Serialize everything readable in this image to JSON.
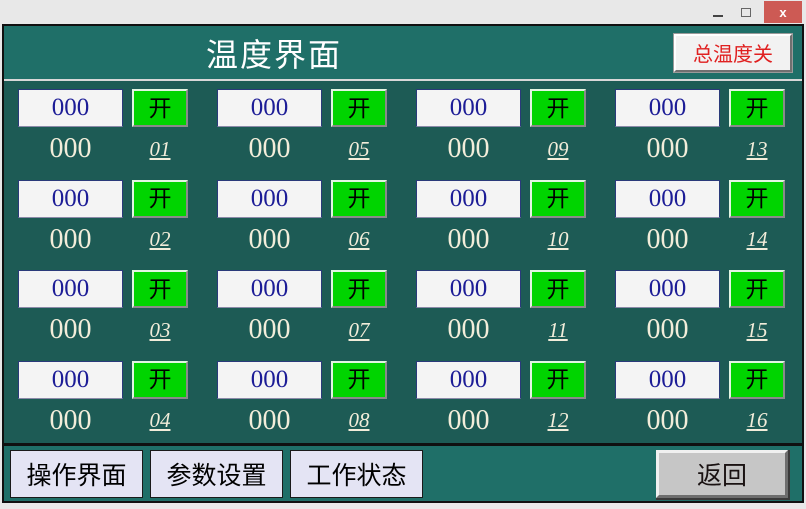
{
  "window": {
    "controls": {
      "minimize": "minimize",
      "maximize": "maximize",
      "close_glyph": "x"
    }
  },
  "header": {
    "title": "温度界面",
    "master_button_label": "总温度关"
  },
  "channels": [
    {
      "id": "01",
      "set_value": "000",
      "switch_label": "开",
      "actual_value": "000"
    },
    {
      "id": "05",
      "set_value": "000",
      "switch_label": "开",
      "actual_value": "000"
    },
    {
      "id": "09",
      "set_value": "000",
      "switch_label": "开",
      "actual_value": "000"
    },
    {
      "id": "13",
      "set_value": "000",
      "switch_label": "开",
      "actual_value": "000"
    },
    {
      "id": "02",
      "set_value": "000",
      "switch_label": "开",
      "actual_value": "000"
    },
    {
      "id": "06",
      "set_value": "000",
      "switch_label": "开",
      "actual_value": "000"
    },
    {
      "id": "10",
      "set_value": "000",
      "switch_label": "开",
      "actual_value": "000"
    },
    {
      "id": "14",
      "set_value": "000",
      "switch_label": "开",
      "actual_value": "000"
    },
    {
      "id": "03",
      "set_value": "000",
      "switch_label": "开",
      "actual_value": "000"
    },
    {
      "id": "07",
      "set_value": "000",
      "switch_label": "开",
      "actual_value": "000"
    },
    {
      "id": "11",
      "set_value": "000",
      "switch_label": "开",
      "actual_value": "000"
    },
    {
      "id": "15",
      "set_value": "000",
      "switch_label": "开",
      "actual_value": "000"
    },
    {
      "id": "04",
      "set_value": "000",
      "switch_label": "开",
      "actual_value": "000"
    },
    {
      "id": "08",
      "set_value": "000",
      "switch_label": "开",
      "actual_value": "000"
    },
    {
      "id": "12",
      "set_value": "000",
      "switch_label": "开",
      "actual_value": "000"
    },
    {
      "id": "16",
      "set_value": "000",
      "switch_label": "开",
      "actual_value": "000"
    }
  ],
  "footer": {
    "nav": [
      "操作界面",
      "参数设置",
      "工作状态"
    ],
    "return_label": "返回"
  },
  "colors": {
    "header_teal": "#1f6f68",
    "main_teal": "#1d5b55",
    "switch_on_green": "#00d400",
    "master_button_red": "#e02020",
    "close_button_red": "#cd5a54",
    "value_text_navy": "#1c1c96",
    "display_text_cream": "#f2edda"
  }
}
